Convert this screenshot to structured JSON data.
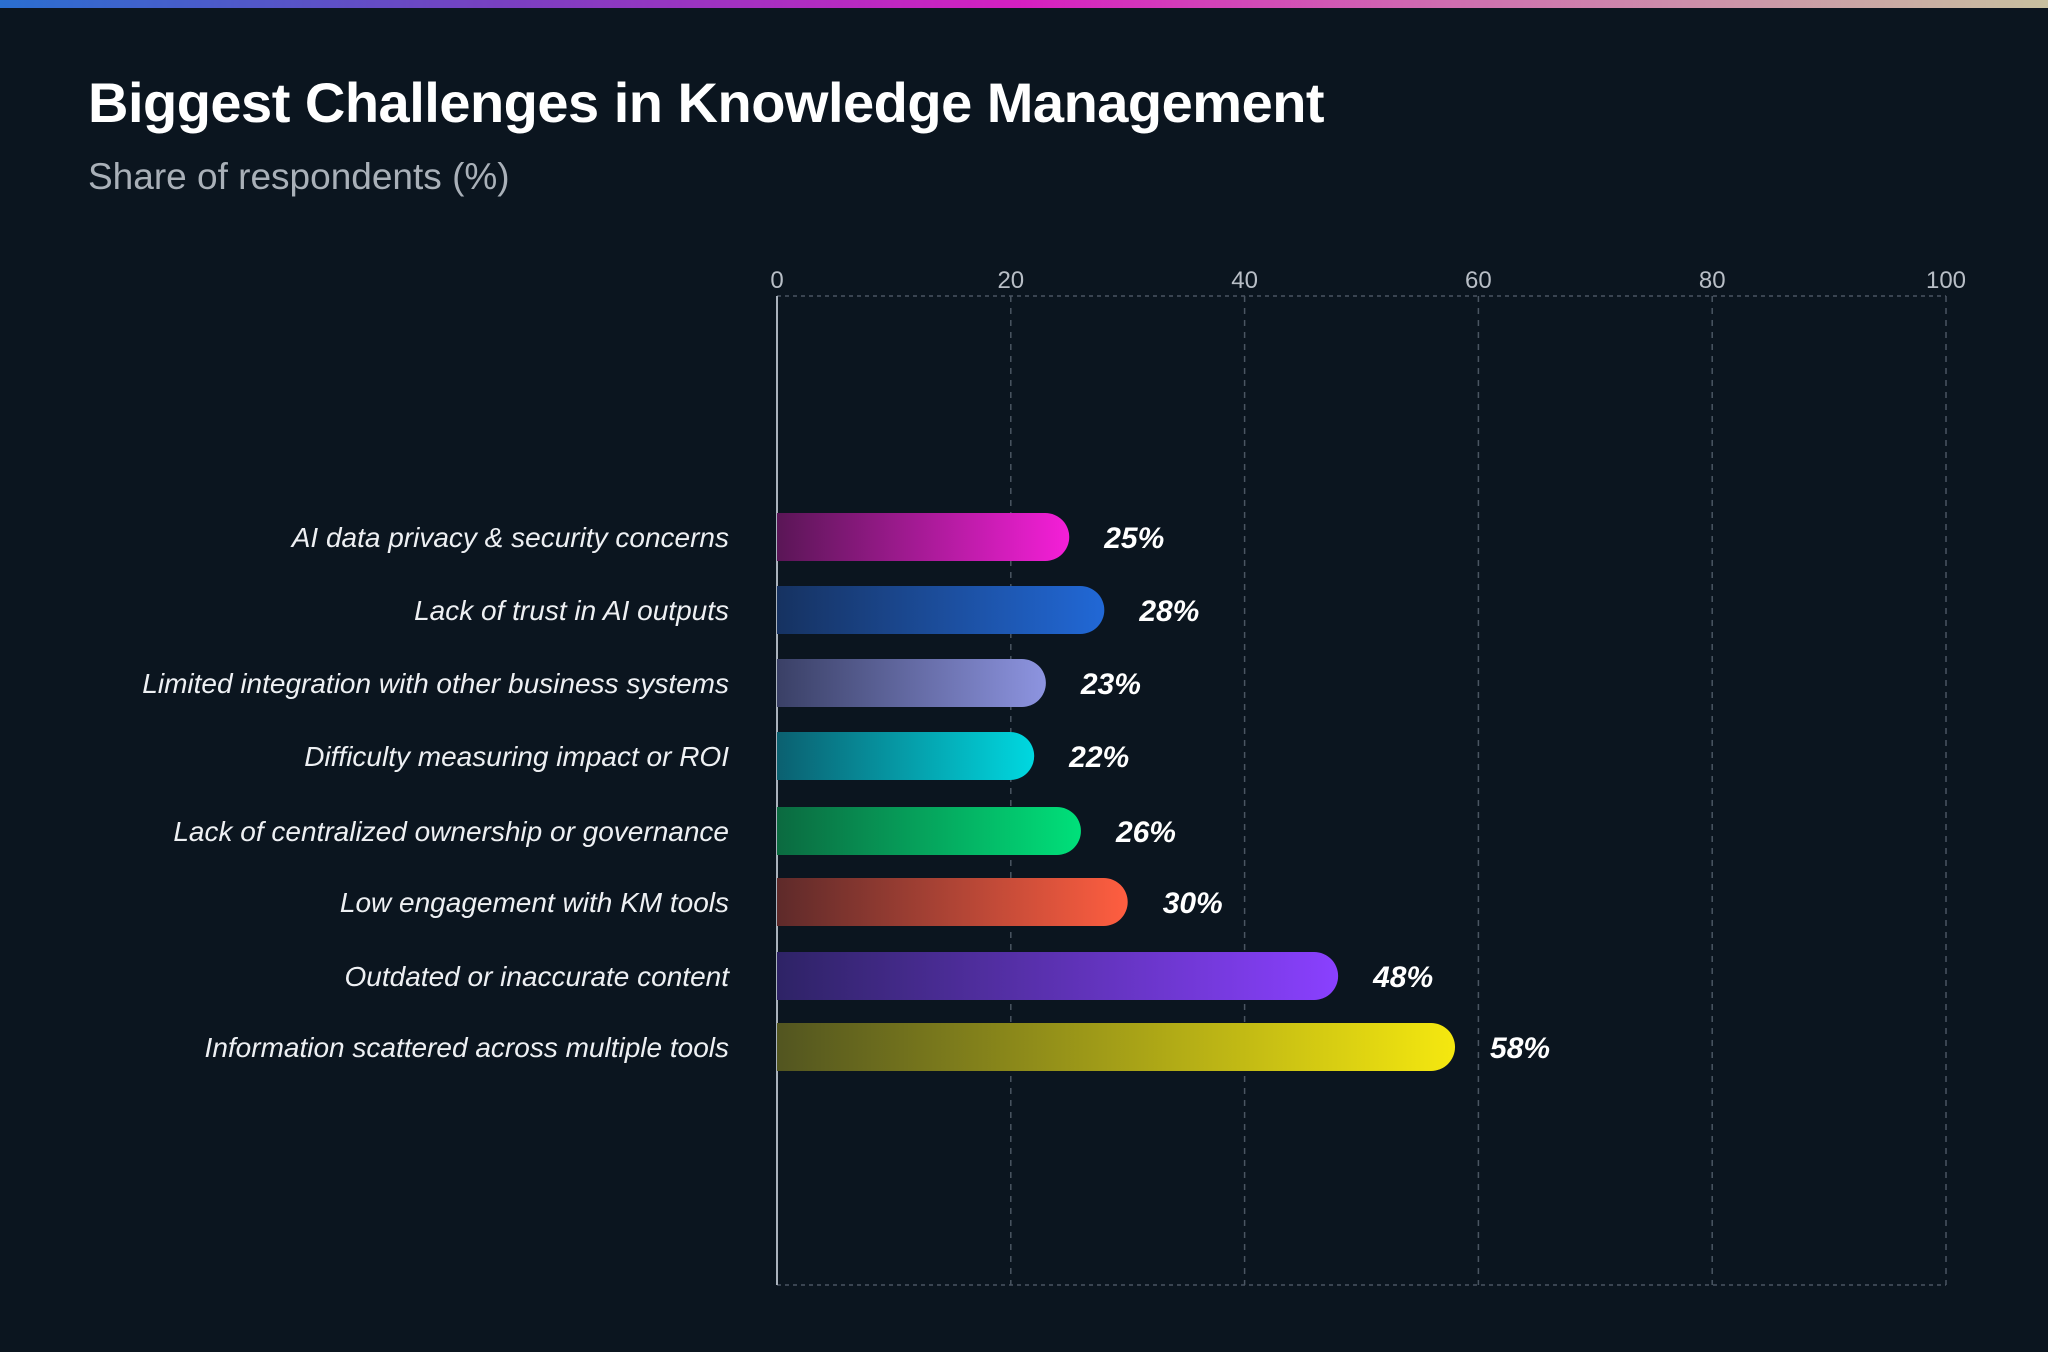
{
  "chart_data": {
    "type": "bar",
    "orientation": "horizontal",
    "title": "Biggest Challenges in Knowledge Management",
    "subtitle": "Share of respondents (%)",
    "xlabel": "",
    "ylabel": "",
    "xlim": [
      0,
      100
    ],
    "xticks": [
      "0",
      "20",
      "40",
      "60",
      "80",
      "100"
    ],
    "grid": true,
    "categories": [
      "AI data privacy & security concerns",
      "Lack of trust in AI outputs",
      "Limited integration with other business systems",
      "Difficulty measuring impact or ROI",
      "Lack of centralized ownership or governance",
      "Low engagement with KM tools",
      "Outdated or inaccurate content",
      "Information scattered across multiple tools"
    ],
    "values": [
      25,
      28,
      23,
      22,
      26,
      30,
      48,
      58
    ],
    "value_labels": [
      "25%",
      "28%",
      "23%",
      "22%",
      "26%",
      "30%",
      "48%",
      "58%"
    ],
    "colors": [
      [
        "#5a1656",
        "#f51fd8"
      ],
      [
        "#163261",
        "#2168d6"
      ],
      [
        "#3a4066",
        "#8d94e0"
      ],
      [
        "#0b6070",
        "#00d8e0"
      ],
      [
        "#0b6a40",
        "#00e07a"
      ],
      [
        "#5e2a2a",
        "#ff5e40"
      ],
      [
        "#2e2366",
        "#8a40ff"
      ],
      [
        "#525520",
        "#f5e80f"
      ]
    ]
  },
  "theme": {
    "background": "#0b151f"
  }
}
